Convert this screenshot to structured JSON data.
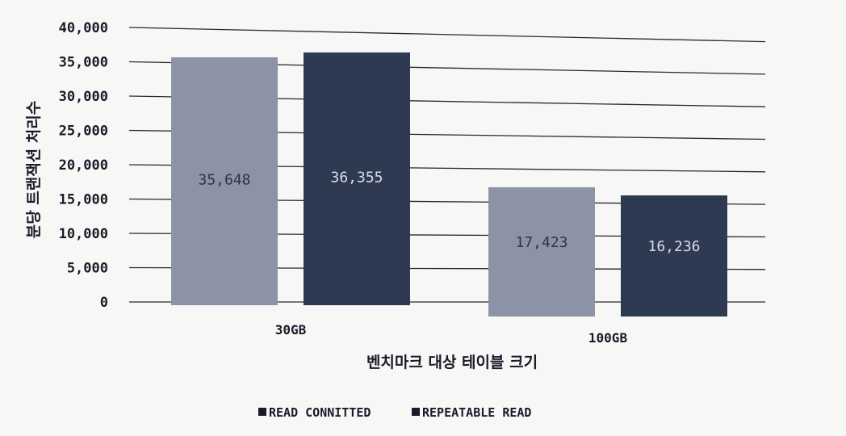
{
  "chart_data": {
    "type": "bar",
    "categories": [
      "30GB",
      "100GB"
    ],
    "series": [
      {
        "name": "READ CONNITTED",
        "values": [
          35648,
          17423
        ],
        "color": "#8c93a6"
      },
      {
        "name": "REPEATABLE READ",
        "values": [
          36355,
          16236
        ],
        "color": "#2e3a52"
      }
    ],
    "data_labels": [
      [
        "35,648",
        "17,423"
      ],
      [
        "36,355",
        "16,236"
      ]
    ],
    "data_label_colors": [
      "#2f3440",
      "#d8dce6"
    ],
    "ylim": [
      0,
      40000
    ],
    "yticks": [
      0,
      5000,
      10000,
      15000,
      20000,
      25000,
      30000,
      35000,
      40000
    ],
    "ytick_labels": [
      "0",
      "5,000",
      "10,000",
      "15,000",
      "20,000",
      "25,000",
      "30,000",
      "35,000",
      "40,000"
    ],
    "xlabel": "벤치마크 대상 테이블 크기",
    "ylabel": "분당 트랜잭션 처리수",
    "grid": true,
    "legend_position": "bottom-center",
    "legend_marker": "■"
  }
}
